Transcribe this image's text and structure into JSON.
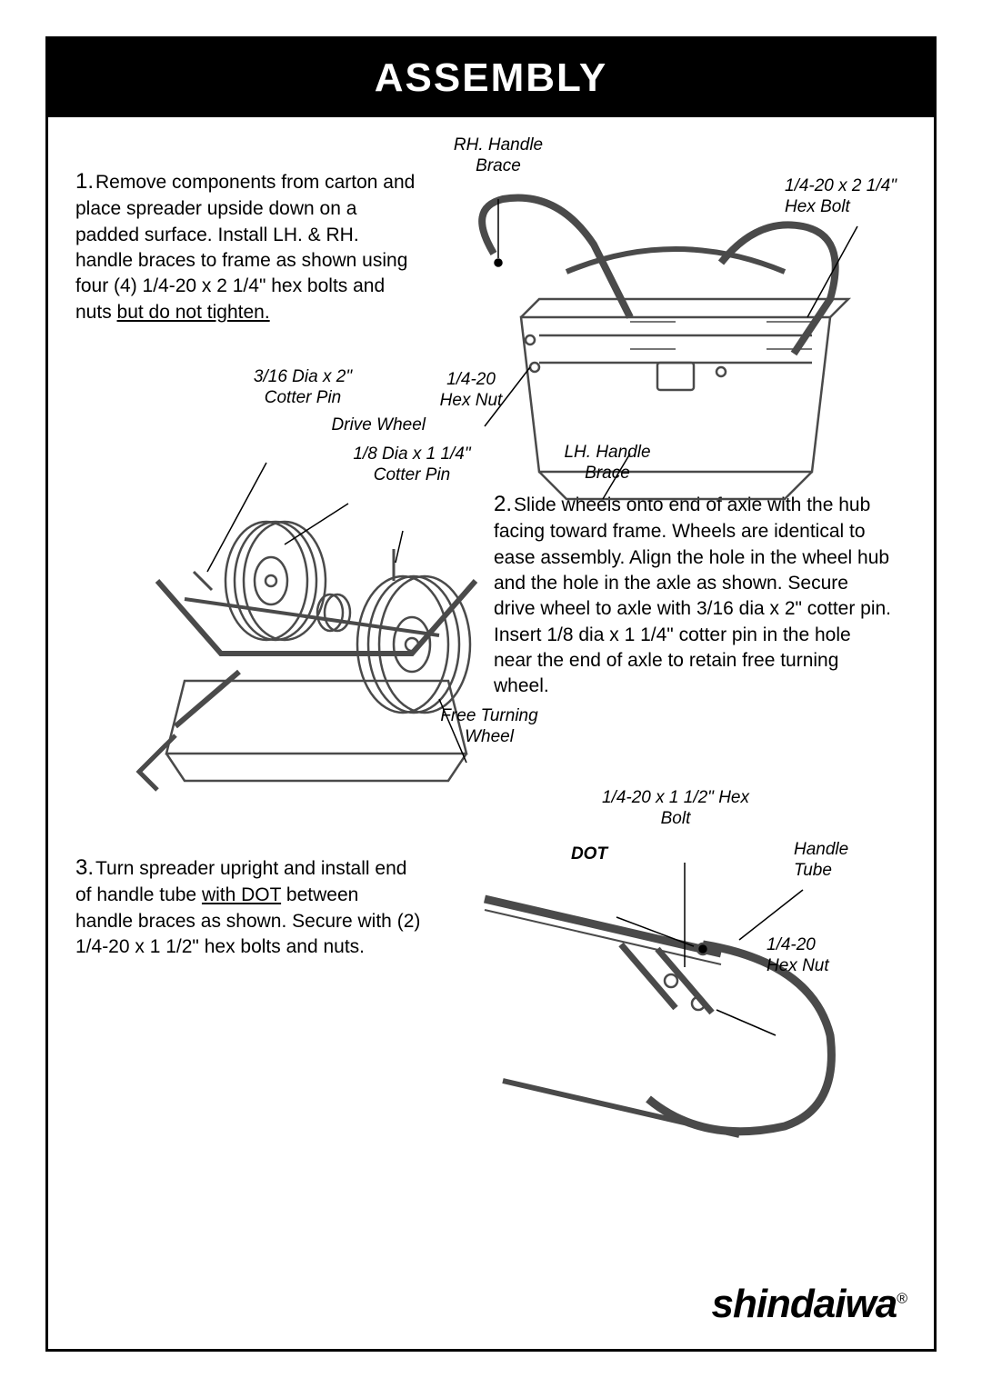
{
  "header": {
    "title": "ASSEMBLY"
  },
  "steps": {
    "s1": {
      "num": "1.",
      "text_a": "Remove components from carton and place spreader upside down on a padded surface. Install LH. & RH. handle braces to frame as shown using four (4) 1/4-20 x 2 1/4\" hex bolts and nuts ",
      "text_u": "but do not tighten."
    },
    "s2": {
      "num": "2.",
      "text": "Slide wheels onto end of axle with the hub facing toward frame. Wheels are identical to ease assembly. Align the hole in the wheel hub and the hole in the axle as shown. Secure drive wheel  to axle with 3/16 dia  x 2\" cotter pin. Insert 1/8 dia x 1 1/4\" cotter pin in the hole near the end of axle to retain free turning wheel."
    },
    "s3": {
      "num": "3.",
      "text_a": "Turn spreader upright and install end of handle tube ",
      "text_u": "with DOT",
      "text_b": " between handle braces as shown. Secure with (2) 1/4-20 x 1 1/2\" hex bolts and nuts."
    }
  },
  "labels": {
    "rh_handle_brace": "RH. Handle\nBrace",
    "hex_bolt_1": "1/4-20 x 2 1/4\"\nHex Bolt",
    "hex_nut_1": "1/4-20\nHex Nut",
    "lh_handle_brace": "LH. Handle\nBrace",
    "cotter_pin_1": "3/16 Dia x 2\"\nCotter Pin",
    "drive_wheel": "Drive Wheel",
    "cotter_pin_2": "1/8 Dia x 1 1/4\"\nCotter Pin",
    "free_wheel": "Free Turning\nWheel",
    "hex_bolt_2": "1/4-20 x 1 1/2\" Hex\nBolt",
    "handle_tube": "Handle\nTube",
    "dot": "DOT",
    "hex_nut_2": "1/4-20\nHex Nut"
  },
  "brand": {
    "name": "shindaiwa",
    "reg": "®"
  },
  "colors": {
    "header_bg": "#000000",
    "header_fg": "#ffffff",
    "text": "#000000",
    "line": "#000000",
    "diagram_stroke": "#4a4a4a"
  }
}
